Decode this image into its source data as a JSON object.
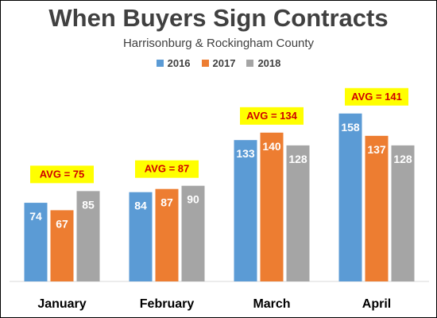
{
  "chart_data": {
    "type": "bar",
    "title": "When Buyers Sign Contracts",
    "subtitle": "Harrisonburg & Rockingham County",
    "categories": [
      "January",
      "February",
      "March",
      "April"
    ],
    "series": [
      {
        "name": "2016",
        "color": "#5b9bd5",
        "values": [
          74,
          84,
          133,
          158
        ]
      },
      {
        "name": "2017",
        "color": "#ed7d31",
        "values": [
          67,
          87,
          140,
          137
        ]
      },
      {
        "name": "2018",
        "color": "#a5a5a5",
        "values": [
          85,
          90,
          128,
          128
        ]
      }
    ],
    "annotations": [
      "AVG = 75",
      "AVG = 87",
      "AVG = 134",
      "AVG = 141"
    ],
    "annotation_style": {
      "background": "#ffff00",
      "text_color": "#d00000"
    },
    "ylim": [
      0,
      190
    ],
    "grid": false,
    "legend_position": "top-center"
  }
}
